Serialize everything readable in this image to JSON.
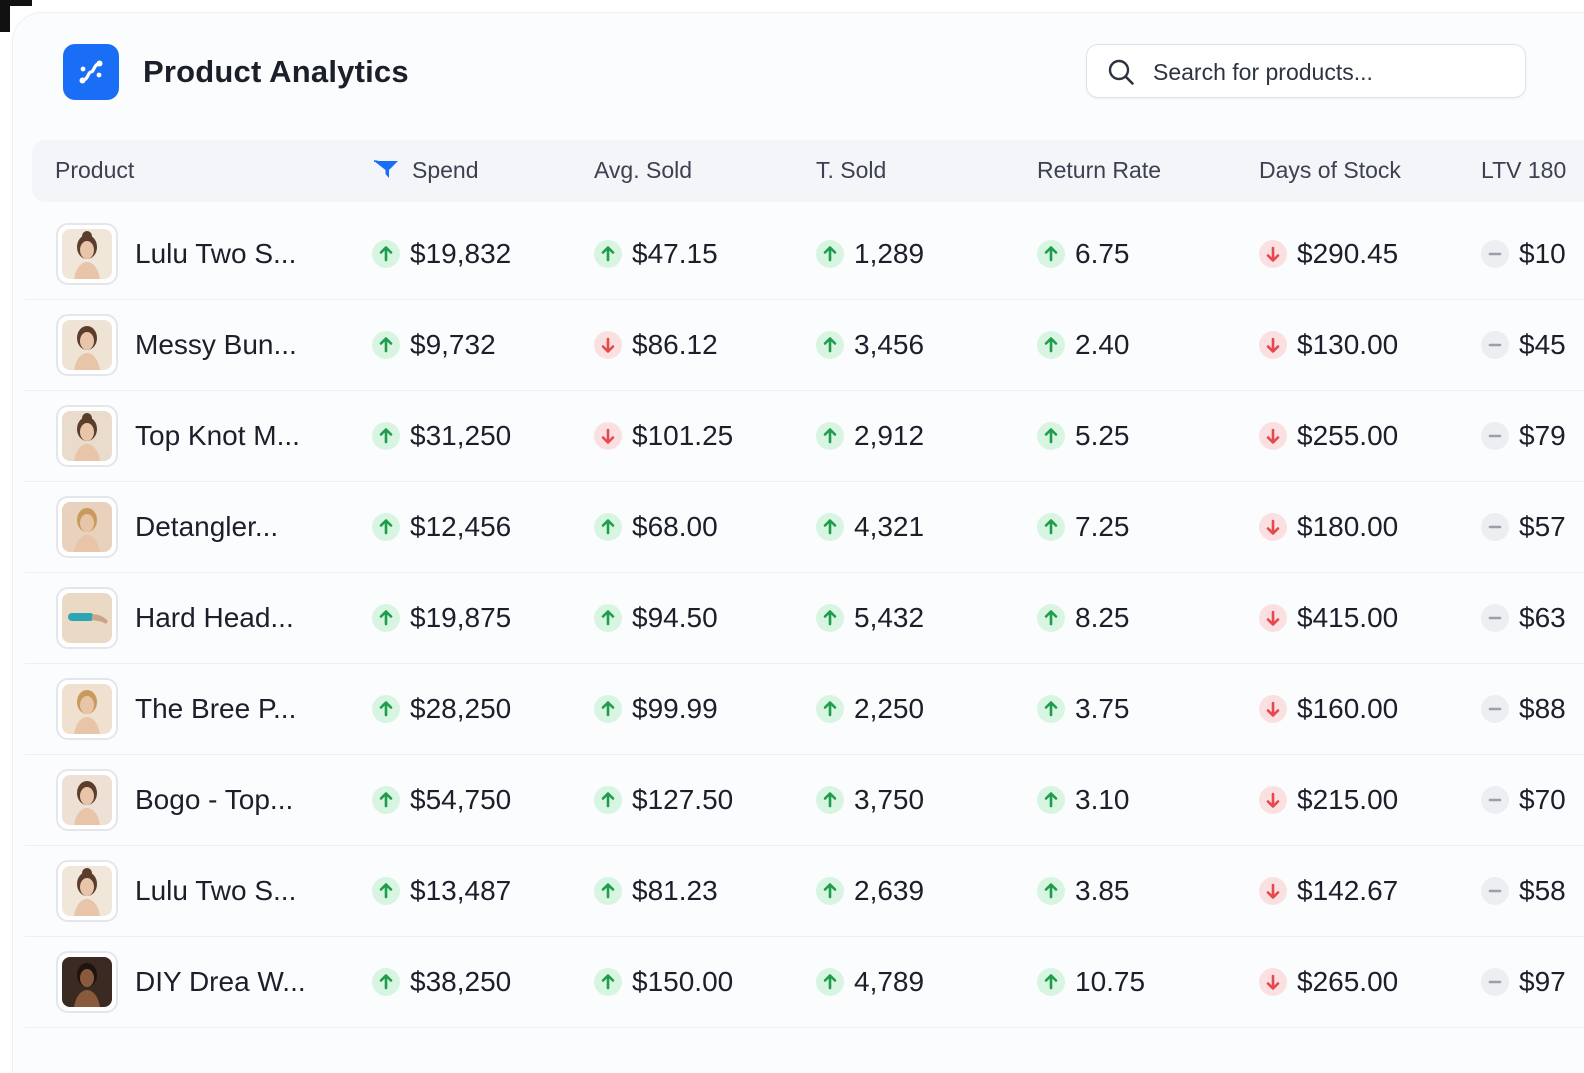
{
  "app": {
    "title": "Product Analytics",
    "brand_color": "#1a6df5",
    "logo_icon": "flow-logo-icon"
  },
  "search": {
    "placeholder": "Search for products...",
    "value": ""
  },
  "table": {
    "columns": [
      {
        "key": "product",
        "label": "Product",
        "icon": null
      },
      {
        "key": "spend",
        "label": "Spend",
        "icon": "funnel-icon"
      },
      {
        "key": "avg_sold",
        "label": "Avg. Sold",
        "icon": null
      },
      {
        "key": "t_sold",
        "label": "T. Sold",
        "icon": null
      },
      {
        "key": "return_rate",
        "label": "Return Rate",
        "icon": null
      },
      {
        "key": "days_of_stock",
        "label": "Days of Stock",
        "icon": null
      },
      {
        "key": "ltv_180",
        "label": "LTV 180",
        "icon": null
      }
    ],
    "trend_colors": {
      "up": "#22a852",
      "down": "#e5484d",
      "flat": "#9aa0aa"
    },
    "rows": [
      {
        "product": "Lulu Two S...",
        "thumb": "woman-portrait-bun",
        "thumb_bg": "#f1e6da",
        "spend": {
          "value": "$19,832",
          "trend": "up"
        },
        "avg_sold": {
          "value": "$47.15",
          "trend": "up"
        },
        "t_sold": {
          "value": "1,289",
          "trend": "up"
        },
        "return_rate": {
          "value": "6.75",
          "trend": "up"
        },
        "days_of_stock": {
          "value": "$290.45",
          "trend": "down"
        },
        "ltv_180": {
          "value": "$10",
          "trend": "flat"
        }
      },
      {
        "product": "Messy Bun...",
        "thumb": "woman-portrait-smile",
        "thumb_bg": "#efe3d6",
        "spend": {
          "value": "$9,732",
          "trend": "up"
        },
        "avg_sold": {
          "value": "$86.12",
          "trend": "down"
        },
        "t_sold": {
          "value": "3,456",
          "trend": "up"
        },
        "return_rate": {
          "value": "2.40",
          "trend": "up"
        },
        "days_of_stock": {
          "value": "$130.00",
          "trend": "down"
        },
        "ltv_180": {
          "value": "$45",
          "trend": "flat"
        }
      },
      {
        "product": "Top Knot M...",
        "thumb": "woman-portrait-topknot",
        "thumb_bg": "#eadccd",
        "spend": {
          "value": "$31,250",
          "trend": "up"
        },
        "avg_sold": {
          "value": "$101.25",
          "trend": "down"
        },
        "t_sold": {
          "value": "2,912",
          "trend": "up"
        },
        "return_rate": {
          "value": "5.25",
          "trend": "up"
        },
        "days_of_stock": {
          "value": "$255.00",
          "trend": "down"
        },
        "ltv_180": {
          "value": "$79",
          "trend": "flat"
        }
      },
      {
        "product": "Detangler...",
        "thumb": "woman-portrait-blonde",
        "thumb_bg": "#e8d2bd",
        "spend": {
          "value": "$12,456",
          "trend": "up"
        },
        "avg_sold": {
          "value": "$68.00",
          "trend": "up"
        },
        "t_sold": {
          "value": "4,321",
          "trend": "up"
        },
        "return_rate": {
          "value": "7.25",
          "trend": "up"
        },
        "days_of_stock": {
          "value": "$180.00",
          "trend": "down"
        },
        "ltv_180": {
          "value": "$57",
          "trend": "flat"
        }
      },
      {
        "product": "Hard Head...",
        "thumb": "hair-tool",
        "thumb_bg": "#e9d9c5",
        "spend": {
          "value": "$19,875",
          "trend": "up"
        },
        "avg_sold": {
          "value": "$94.50",
          "trend": "up"
        },
        "t_sold": {
          "value": "5,432",
          "trend": "up"
        },
        "return_rate": {
          "value": "8.25",
          "trend": "up"
        },
        "days_of_stock": {
          "value": "$415.00",
          "trend": "down"
        },
        "ltv_180": {
          "value": "$63",
          "trend": "flat"
        }
      },
      {
        "product": "The Bree P...",
        "thumb": "woman-portrait-blonde-smile",
        "thumb_bg": "#efe0cf",
        "spend": {
          "value": "$28,250",
          "trend": "up"
        },
        "avg_sold": {
          "value": "$99.99",
          "trend": "up"
        },
        "t_sold": {
          "value": "2,250",
          "trend": "up"
        },
        "return_rate": {
          "value": "3.75",
          "trend": "up"
        },
        "days_of_stock": {
          "value": "$160.00",
          "trend": "down"
        },
        "ltv_180": {
          "value": "$88",
          "trend": "flat"
        }
      },
      {
        "product": "Bogo - Top...",
        "thumb": "woman-portrait-ponytail",
        "thumb_bg": "#ece1d4",
        "spend": {
          "value": "$54,750",
          "trend": "up"
        },
        "avg_sold": {
          "value": "$127.50",
          "trend": "up"
        },
        "t_sold": {
          "value": "3,750",
          "trend": "up"
        },
        "return_rate": {
          "value": "3.10",
          "trend": "up"
        },
        "days_of_stock": {
          "value": "$215.00",
          "trend": "down"
        },
        "ltv_180": {
          "value": "$70",
          "trend": "flat"
        }
      },
      {
        "product": "Lulu Two S...",
        "thumb": "woman-portrait-bun",
        "thumb_bg": "#f1e6da",
        "spend": {
          "value": "$13,487",
          "trend": "up"
        },
        "avg_sold": {
          "value": "$81.23",
          "trend": "up"
        },
        "t_sold": {
          "value": "2,639",
          "trend": "up"
        },
        "return_rate": {
          "value": "3.85",
          "trend": "up"
        },
        "days_of_stock": {
          "value": "$142.67",
          "trend": "down"
        },
        "ltv_180": {
          "value": "$58",
          "trend": "flat"
        }
      },
      {
        "product": "DIY Drea W...",
        "thumb": "woman-portrait-dark-hair",
        "thumb_bg": "#3a2a22",
        "spend": {
          "value": "$38,250",
          "trend": "up"
        },
        "avg_sold": {
          "value": "$150.00",
          "trend": "up"
        },
        "t_sold": {
          "value": "4,789",
          "trend": "up"
        },
        "return_rate": {
          "value": "10.75",
          "trend": "up"
        },
        "days_of_stock": {
          "value": "$265.00",
          "trend": "down"
        },
        "ltv_180": {
          "value": "$97",
          "trend": "flat"
        }
      }
    ]
  }
}
